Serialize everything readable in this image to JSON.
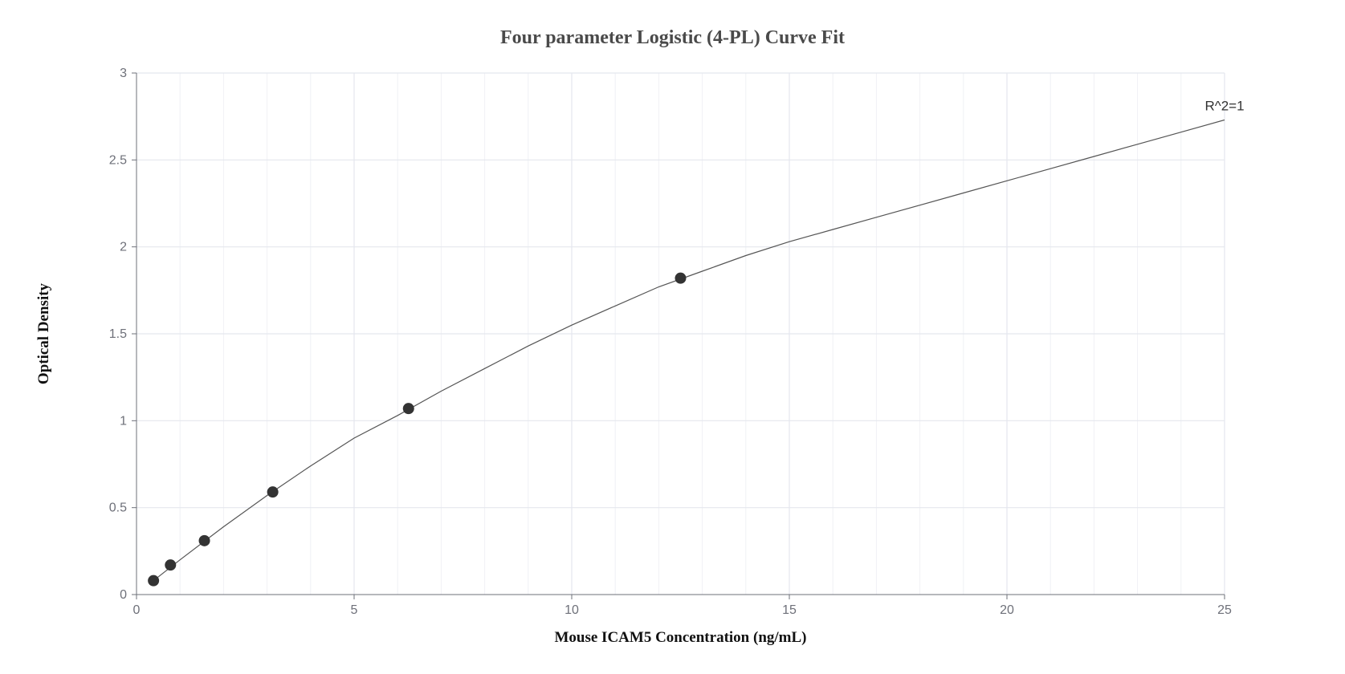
{
  "chart_data": {
    "type": "scatter",
    "title": "Four parameter Logistic (4-PL) Curve Fit",
    "xlabel": "Mouse ICAM5 Concentration (ng/mL)",
    "ylabel": "Optical Density",
    "xlim": [
      0,
      25
    ],
    "ylim": [
      0,
      3
    ],
    "xticks": [
      0,
      5,
      10,
      15,
      20,
      25
    ],
    "yticks": [
      0,
      0.5,
      1,
      1.5,
      2,
      2.5,
      3
    ],
    "xtick_labels": [
      "0",
      "5",
      "10",
      "15",
      "20",
      "25"
    ],
    "ytick_labels": [
      "0",
      "0.5",
      "1",
      "1.5",
      "2",
      "2.5",
      "3"
    ],
    "grid": true,
    "points": [
      {
        "x": 0.39,
        "y": 0.08
      },
      {
        "x": 0.78,
        "y": 0.17
      },
      {
        "x": 1.56,
        "y": 0.31
      },
      {
        "x": 3.13,
        "y": 0.59
      },
      {
        "x": 6.25,
        "y": 1.07
      },
      {
        "x": 12.5,
        "y": 1.82
      }
    ],
    "fit_curve": {
      "x": [
        0.39,
        1,
        2,
        3,
        4,
        5,
        6,
        7,
        8,
        9,
        10,
        11,
        12,
        13,
        14,
        15,
        16,
        17,
        18,
        19,
        20,
        21,
        22,
        23,
        24,
        25
      ],
      "y": [
        0.08,
        0.2,
        0.39,
        0.57,
        0.74,
        0.9,
        1.03,
        1.17,
        1.3,
        1.43,
        1.55,
        1.66,
        1.77,
        1.86,
        1.95,
        2.03,
        2.1,
        2.17,
        2.24,
        2.31,
        2.38,
        2.45,
        2.52,
        2.59,
        2.66,
        2.73
      ]
    },
    "annotation": "R^2=1",
    "colors": {
      "points": "#333333",
      "curve": "#555555",
      "grid": "#e4e7ee",
      "axis": "#6e7079",
      "title": "#4a4a4a"
    }
  }
}
